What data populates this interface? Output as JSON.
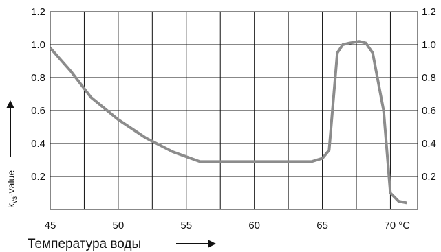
{
  "chart_data": {
    "type": "line",
    "title": "",
    "xlabel": "Температура воды",
    "ylabel_main": "k",
    "ylabel_sub": "vs",
    "ylabel_rest": "-value",
    "xlim": [
      45,
      72
    ],
    "ylim": [
      0,
      1.2
    ],
    "x_ticks": [
      45,
      50,
      55,
      60,
      65,
      70
    ],
    "x_tick_labels": [
      "45",
      "50",
      "55",
      "60",
      "65",
      "70 °C"
    ],
    "y_ticks": [
      0.2,
      0.4,
      0.6,
      0.8,
      1.0,
      1.2
    ],
    "y_tick_labels": [
      "0.2",
      "0.4",
      "0.6",
      "0.8",
      "1.0",
      "1.2"
    ],
    "grid": true,
    "line_color": "#8c8c8c",
    "series": [
      {
        "x": [
          45,
          46.5,
          48,
          50,
          52,
          54,
          56,
          58,
          60,
          62,
          64.2,
          65,
          65.5,
          66.1,
          66.5,
          67,
          67.7,
          68.2,
          68.7,
          69.5,
          70,
          70.6,
          71.2
        ],
        "y": [
          0.98,
          0.84,
          0.68,
          0.545,
          0.435,
          0.35,
          0.29,
          0.29,
          0.29,
          0.29,
          0.29,
          0.31,
          0.36,
          0.95,
          1.0,
          1.01,
          1.02,
          1.01,
          0.95,
          0.6,
          0.1,
          0.05,
          0.04
        ]
      }
    ]
  }
}
